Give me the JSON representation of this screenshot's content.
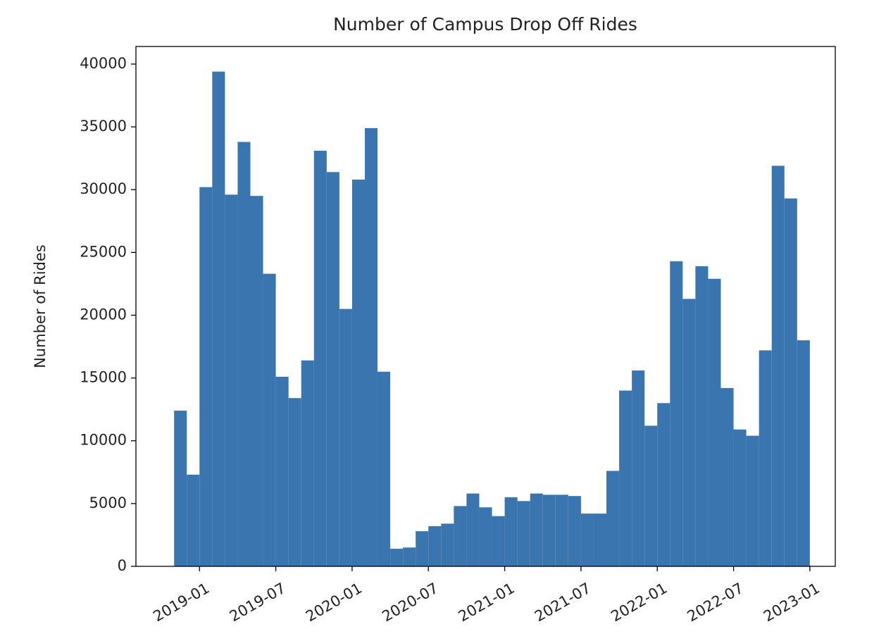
{
  "chart_data": {
    "type": "histogram",
    "title": "Number of Campus Drop Off Rides",
    "ylabel": "Number of Rides",
    "color": "#3b75af",
    "bins": [
      "2018-11",
      "2018-12",
      "2019-01",
      "2019-02",
      "2019-03",
      "2019-04",
      "2019-05",
      "2019-06",
      "2019-07",
      "2019-08",
      "2019-09",
      "2019-10",
      "2019-11",
      "2019-12",
      "2020-01",
      "2020-02",
      "2020-03",
      "2020-04",
      "2020-05",
      "2020-06",
      "2020-07",
      "2020-08",
      "2020-09",
      "2020-10",
      "2020-11",
      "2020-12",
      "2021-01",
      "2021-02",
      "2021-03",
      "2021-04",
      "2021-05",
      "2021-06",
      "2021-07",
      "2021-08",
      "2021-09",
      "2021-10",
      "2021-11",
      "2021-12",
      "2022-01",
      "2022-02",
      "2022-03",
      "2022-04",
      "2022-05",
      "2022-06",
      "2022-07",
      "2022-08",
      "2022-09",
      "2022-10",
      "2022-11",
      "2022-12",
      "2023-01"
    ],
    "counts": [
      12400,
      7300,
      30200,
      39400,
      29600,
      33800,
      29500,
      23300,
      15100,
      13400,
      16400,
      33100,
      31400,
      20500,
      30800,
      34900,
      15500,
      1400,
      1500,
      2800,
      3200,
      3400,
      4800,
      5800,
      4700,
      4000,
      5500,
      5200,
      5800,
      5700,
      5700,
      5600,
      4200,
      4200,
      7600,
      14000,
      15600,
      11200,
      13000,
      24300,
      21300,
      23900,
      22900,
      14200,
      10900,
      10400,
      17200,
      31900,
      29300,
      18000
    ],
    "xlim": [
      "2018-08",
      "2023-03"
    ],
    "xticks": [
      "2019-01",
      "2019-07",
      "2020-01",
      "2020-07",
      "2021-01",
      "2021-07",
      "2022-01",
      "2022-07",
      "2023-01"
    ],
    "ylim": [
      0,
      41400
    ],
    "yticks": [
      0,
      5000,
      10000,
      15000,
      20000,
      25000,
      30000,
      35000,
      40000
    ]
  }
}
